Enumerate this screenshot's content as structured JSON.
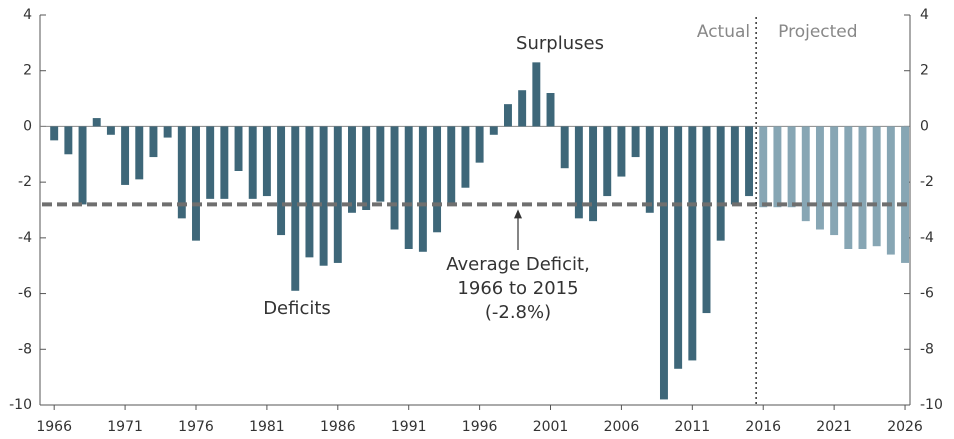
{
  "chart_data": {
    "type": "bar",
    "x": [
      1966,
      1967,
      1968,
      1969,
      1970,
      1971,
      1972,
      1973,
      1974,
      1975,
      1976,
      1977,
      1978,
      1979,
      1980,
      1981,
      1982,
      1983,
      1984,
      1985,
      1986,
      1987,
      1988,
      1989,
      1990,
      1991,
      1992,
      1993,
      1994,
      1995,
      1996,
      1997,
      1998,
      1999,
      2000,
      2001,
      2002,
      2003,
      2004,
      2005,
      2006,
      2007,
      2008,
      2009,
      2010,
      2011,
      2012,
      2013,
      2014,
      2015,
      2016,
      2017,
      2018,
      2019,
      2020,
      2021,
      2022,
      2023,
      2024,
      2025,
      2026
    ],
    "series": [
      {
        "name": "Actual",
        "color": "#3e6779",
        "values": [
          -0.5,
          -1.0,
          -2.8,
          0.3,
          -0.3,
          -2.1,
          -1.9,
          -1.1,
          -0.4,
          -3.3,
          -4.1,
          -2.6,
          -2.6,
          -1.6,
          -2.6,
          -2.5,
          -3.9,
          -5.9,
          -4.7,
          -5.0,
          -4.9,
          -3.1,
          -3.0,
          -2.7,
          -3.7,
          -4.4,
          -4.5,
          -3.8,
          -2.8,
          -2.2,
          -1.3,
          -0.3,
          0.8,
          1.3,
          2.3,
          1.2,
          -1.5,
          -3.3,
          -3.4,
          -2.5,
          -1.8,
          -1.1,
          -3.1,
          -9.8,
          -8.7,
          -8.4,
          -6.7,
          -4.1,
          -2.8,
          -2.5,
          null,
          null,
          null,
          null,
          null,
          null,
          null,
          null,
          null,
          null,
          null
        ]
      },
      {
        "name": "Projected",
        "color": "#87a6b4",
        "values": [
          null,
          null,
          null,
          null,
          null,
          null,
          null,
          null,
          null,
          null,
          null,
          null,
          null,
          null,
          null,
          null,
          null,
          null,
          null,
          null,
          null,
          null,
          null,
          null,
          null,
          null,
          null,
          null,
          null,
          null,
          null,
          null,
          null,
          null,
          null,
          null,
          null,
          null,
          null,
          null,
          null,
          null,
          null,
          null,
          null,
          null,
          null,
          null,
          null,
          null,
          -2.9,
          -2.9,
          -2.9,
          -3.4,
          -3.7,
          -3.9,
          -4.4,
          -4.4,
          -4.3,
          -4.6,
          -4.9
        ]
      }
    ],
    "xlim": [
      1965.0,
      2026.35
    ],
    "xticks": [
      1966,
      1971,
      1976,
      1981,
      1986,
      1991,
      1996,
      2001,
      2006,
      2011,
      2016,
      2021,
      2026
    ],
    "ylim": [
      -10,
      4
    ],
    "yticks": [
      4,
      2,
      0,
      -2,
      -4,
      -6,
      -8,
      -10
    ],
    "y2lim": [
      -10,
      4
    ],
    "y2ticks": [
      4,
      2,
      0,
      -2,
      -4,
      -6,
      -8,
      -10
    ],
    "divider_x": 2015.5,
    "average": -2.8,
    "average_color": "#6f6f6f",
    "labels": {
      "surpluses": "Surpluses",
      "deficits": "Deficits",
      "average": [
        "Average Deficit,",
        "1966 to 2015",
        "(-2.8%)"
      ]
    }
  }
}
